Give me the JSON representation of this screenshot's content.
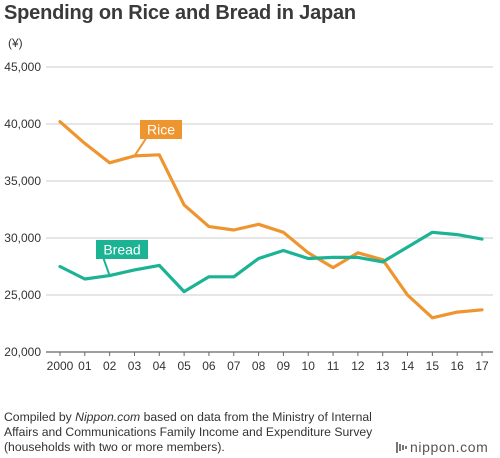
{
  "title": "Spending on Rice and Bread in Japan",
  "unit": "(¥)",
  "colors": {
    "rice": "#EF952F",
    "bread": "#1CB394",
    "grid": "#bdbdbd",
    "axis": "#666666"
  },
  "chart_data": {
    "type": "line",
    "title": "Spending on Rice and Bread in Japan",
    "ylabel": "(¥)",
    "xlabel": "",
    "ylim": [
      20000,
      45000
    ],
    "yticks": [
      20000,
      25000,
      30000,
      35000,
      40000,
      45000
    ],
    "ytick_labels": [
      "20,000",
      "25,000",
      "30,000",
      "35,000",
      "40,000",
      "45,000"
    ],
    "categories": [
      "2000",
      "01",
      "02",
      "03",
      "04",
      "05",
      "06",
      "07",
      "08",
      "09",
      "10",
      "11",
      "12",
      "13",
      "14",
      "15",
      "16",
      "17"
    ],
    "grid": true,
    "series": [
      {
        "name": "Rice",
        "color": "#EF952F",
        "values": [
          40200,
          38300,
          36600,
          37200,
          37300,
          32900,
          31000,
          30700,
          31200,
          30500,
          28700,
          27400,
          28700,
          28100,
          25000,
          23000,
          23500,
          23700
        ]
      },
      {
        "name": "Bread",
        "color": "#1CB394",
        "values": [
          27500,
          26400,
          26700,
          27200,
          27600,
          25300,
          26600,
          26600,
          28200,
          28900,
          28200,
          28300,
          28300,
          27900,
          29200,
          30500,
          30300,
          29900
        ]
      }
    ]
  },
  "footer": {
    "prefix": "Compiled by ",
    "source": "Nippon.com",
    "suffix": " based on data from the Ministry of Internal Affairs and Communications Family Income and Expenditure Survey (households with two or more members)."
  },
  "brand": "nippon.com"
}
